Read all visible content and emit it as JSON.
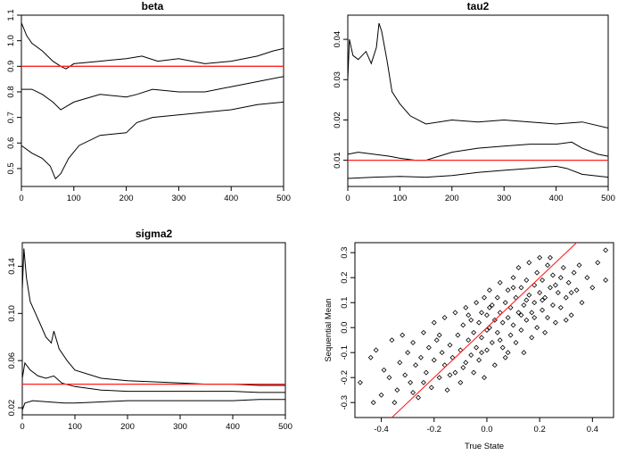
{
  "chart_data": [
    {
      "type": "line",
      "title": "beta",
      "xlabel": "",
      "ylabel": "",
      "xlim": [
        0,
        500
      ],
      "ylim": [
        0.43,
        1.1
      ],
      "xticks": [
        0,
        100,
        200,
        300,
        400,
        500
      ],
      "yticks": [
        0.5,
        0.6,
        0.7,
        0.8,
        0.9,
        1.0,
        1.1
      ],
      "xtick_labels": [
        "0",
        "100",
        "200",
        "300",
        "400",
        "500"
      ],
      "ytick_labels": [
        "0.5",
        "0.6",
        "0.7",
        "0.8",
        "0.9",
        "1.0",
        "1.1"
      ],
      "series": [
        {
          "name": "upper",
          "color": "#000000",
          "x": [
            0,
            10,
            20,
            40,
            60,
            75,
            85,
            100,
            150,
            200,
            230,
            260,
            300,
            350,
            400,
            450,
            480,
            500
          ],
          "y": [
            1.07,
            1.02,
            0.99,
            0.96,
            0.92,
            0.9,
            0.89,
            0.91,
            0.92,
            0.93,
            0.94,
            0.92,
            0.93,
            0.91,
            0.92,
            0.94,
            0.96,
            0.97
          ]
        },
        {
          "name": "middle",
          "color": "#000000",
          "x": [
            0,
            20,
            40,
            60,
            75,
            100,
            150,
            200,
            220,
            250,
            300,
            350,
            400,
            450,
            500
          ],
          "y": [
            0.81,
            0.81,
            0.79,
            0.76,
            0.73,
            0.76,
            0.79,
            0.78,
            0.79,
            0.81,
            0.8,
            0.8,
            0.82,
            0.84,
            0.86
          ]
        },
        {
          "name": "lower",
          "color": "#000000",
          "x": [
            0,
            20,
            40,
            55,
            65,
            75,
            90,
            110,
            150,
            200,
            220,
            250,
            300,
            350,
            400,
            450,
            500
          ],
          "y": [
            0.59,
            0.56,
            0.54,
            0.51,
            0.46,
            0.48,
            0.54,
            0.59,
            0.63,
            0.64,
            0.68,
            0.7,
            0.71,
            0.72,
            0.73,
            0.75,
            0.76
          ]
        }
      ],
      "hline": {
        "y": 0.9,
        "color": "#ff2020"
      }
    },
    {
      "type": "line",
      "title": "tau2",
      "xlabel": "",
      "ylabel": "",
      "xlim": [
        0,
        500
      ],
      "ylim": [
        0.0035,
        0.046
      ],
      "xticks": [
        0,
        100,
        200,
        300,
        400,
        500
      ],
      "yticks": [
        0.01,
        0.02,
        0.03,
        0.04
      ],
      "xtick_labels": [
        "0",
        "100",
        "200",
        "300",
        "400",
        "500"
      ],
      "ytick_labels": [
        "0.01",
        "0.02",
        "0.03",
        "0.04"
      ],
      "series": [
        {
          "name": "upper",
          "color": "#000000",
          "x": [
            0,
            3,
            10,
            20,
            35,
            45,
            55,
            60,
            65,
            75,
            85,
            100,
            120,
            150,
            200,
            250,
            300,
            350,
            400,
            450,
            500
          ],
          "y": [
            0.03,
            0.04,
            0.036,
            0.035,
            0.037,
            0.034,
            0.038,
            0.044,
            0.042,
            0.035,
            0.027,
            0.024,
            0.021,
            0.019,
            0.02,
            0.0195,
            0.02,
            0.0195,
            0.019,
            0.0195,
            0.018
          ]
        },
        {
          "name": "middle",
          "color": "#000000",
          "x": [
            0,
            20,
            50,
            80,
            100,
            130,
            150,
            200,
            250,
            300,
            350,
            400,
            430,
            450,
            480,
            500
          ],
          "y": [
            0.0115,
            0.012,
            0.0115,
            0.011,
            0.0105,
            0.01,
            0.01,
            0.012,
            0.013,
            0.0135,
            0.014,
            0.014,
            0.0145,
            0.013,
            0.0115,
            0.011
          ]
        },
        {
          "name": "lower",
          "color": "#000000",
          "x": [
            0,
            50,
            100,
            150,
            200,
            250,
            300,
            350,
            400,
            420,
            450,
            500
          ],
          "y": [
            0.0055,
            0.0058,
            0.006,
            0.0058,
            0.0062,
            0.007,
            0.0075,
            0.008,
            0.0085,
            0.008,
            0.0065,
            0.0058
          ]
        }
      ],
      "hline": {
        "y": 0.01,
        "color": "#ff2020"
      }
    },
    {
      "type": "line",
      "title": "sigma2",
      "xlabel": "",
      "ylabel": "",
      "xlim": [
        0,
        500
      ],
      "ylim": [
        0.014,
        0.16
      ],
      "xticks": [
        0,
        100,
        200,
        300,
        400,
        500
      ],
      "yticks": [
        0.02,
        0.06,
        0.1,
        0.14
      ],
      "xtick_labels": [
        "0",
        "100",
        "200",
        "300",
        "400",
        "500"
      ],
      "ytick_labels": [
        "0.02",
        "0.06",
        "0.10",
        "0.14"
      ],
      "series": [
        {
          "name": "upper",
          "color": "#000000",
          "x": [
            0,
            3,
            8,
            15,
            25,
            35,
            45,
            55,
            60,
            70,
            85,
            100,
            150,
            200,
            250,
            300,
            350,
            400,
            450,
            500
          ],
          "y": [
            0.12,
            0.155,
            0.13,
            0.11,
            0.1,
            0.09,
            0.08,
            0.075,
            0.085,
            0.07,
            0.06,
            0.052,
            0.045,
            0.043,
            0.042,
            0.041,
            0.04,
            0.04,
            0.039,
            0.039
          ]
        },
        {
          "name": "middle",
          "color": "#000000",
          "x": [
            0,
            5,
            15,
            30,
            45,
            60,
            75,
            100,
            150,
            200,
            250,
            300,
            350,
            400,
            450,
            500
          ],
          "y": [
            0.045,
            0.058,
            0.052,
            0.047,
            0.045,
            0.047,
            0.041,
            0.038,
            0.035,
            0.034,
            0.034,
            0.034,
            0.034,
            0.034,
            0.033,
            0.033
          ]
        },
        {
          "name": "lower",
          "color": "#000000",
          "x": [
            0,
            5,
            20,
            50,
            80,
            100,
            150,
            200,
            250,
            300,
            350,
            400,
            450,
            500
          ],
          "y": [
            0.018,
            0.024,
            0.026,
            0.025,
            0.024,
            0.024,
            0.025,
            0.026,
            0.026,
            0.026,
            0.026,
            0.026,
            0.027,
            0.027
          ]
        }
      ],
      "hline": {
        "y": 0.04,
        "color": "#ff2020"
      }
    },
    {
      "type": "scatter",
      "title": "",
      "xlabel": "True State",
      "ylabel": "Sequential Mean",
      "xlim": [
        -0.5,
        0.48
      ],
      "ylim": [
        -0.36,
        0.34
      ],
      "xticks": [
        -0.4,
        -0.2,
        0.0,
        0.2,
        0.4
      ],
      "yticks": [
        -0.3,
        -0.2,
        -0.1,
        0.0,
        0.1,
        0.2,
        0.3
      ],
      "xtick_labels": [
        "-0.4",
        "-0.2",
        "0.0",
        "0.2",
        "0.4"
      ],
      "ytick_labels": [
        "-0.3",
        "-0.2",
        "-0.1",
        "0.0",
        "0.1",
        "0.2",
        "0.3"
      ],
      "points": [
        [
          -0.48,
          -0.22
        ],
        [
          -0.44,
          -0.12
        ],
        [
          -0.43,
          -0.3
        ],
        [
          -0.42,
          -0.09
        ],
        [
          -0.4,
          -0.27
        ],
        [
          -0.39,
          -0.17
        ],
        [
          -0.37,
          -0.2
        ],
        [
          -0.36,
          -0.05
        ],
        [
          -0.34,
          -0.25
        ],
        [
          -0.33,
          -0.14
        ],
        [
          -0.32,
          -0.03
        ],
        [
          -0.31,
          -0.19
        ],
        [
          -0.3,
          -0.1
        ],
        [
          -0.29,
          -0.22
        ],
        [
          -0.28,
          -0.06
        ],
        [
          -0.27,
          -0.15
        ],
        [
          -0.26,
          -0.28
        ],
        [
          -0.25,
          -0.12
        ],
        [
          -0.24,
          -0.02
        ],
        [
          -0.23,
          -0.18
        ],
        [
          -0.22,
          -0.08
        ],
        [
          -0.21,
          -0.24
        ],
        [
          -0.2,
          -0.13
        ],
        [
          -0.2,
          0.02
        ],
        [
          -0.19,
          -0.05
        ],
        [
          -0.18,
          -0.2
        ],
        [
          -0.17,
          -0.1
        ],
        [
          -0.16,
          0.04
        ],
        [
          -0.16,
          -0.15
        ],
        [
          -0.15,
          -0.25
        ],
        [
          -0.14,
          -0.07
        ],
        [
          -0.13,
          -0.12
        ],
        [
          -0.12,
          0.06
        ],
        [
          -0.12,
          -0.18
        ],
        [
          -0.11,
          -0.03
        ],
        [
          -0.1,
          -0.09
        ],
        [
          -0.1,
          -0.22
        ],
        [
          -0.09,
          0.01
        ],
        [
          -0.08,
          -0.14
        ],
        [
          -0.08,
          0.08
        ],
        [
          -0.07,
          -0.05
        ],
        [
          -0.06,
          -0.11
        ],
        [
          -0.06,
          0.03
        ],
        [
          -0.05,
          -0.18
        ],
        [
          -0.05,
          -0.02
        ],
        [
          -0.04,
          0.1
        ],
        [
          -0.04,
          -0.08
        ],
        [
          -0.03,
          0.02
        ],
        [
          -0.03,
          -0.13
        ],
        [
          -0.02,
          0.06
        ],
        [
          -0.02,
          -0.04
        ],
        [
          -0.01,
          -0.2
        ],
        [
          -0.01,
          0.12
        ],
        [
          0.0,
          -0.01
        ],
        [
          0.0,
          0.05
        ],
        [
          0.0,
          -0.09
        ],
        [
          0.01,
          0.15
        ],
        [
          0.01,
          0.0
        ],
        [
          0.02,
          -0.06
        ],
        [
          0.02,
          0.09
        ],
        [
          0.03,
          0.03
        ],
        [
          0.03,
          -0.15
        ],
        [
          0.04,
          0.12
        ],
        [
          0.04,
          -0.02
        ],
        [
          0.05,
          0.06
        ],
        [
          0.05,
          0.18
        ],
        [
          0.06,
          -0.08
        ],
        [
          0.06,
          0.02
        ],
        [
          0.07,
          0.1
        ],
        [
          0.07,
          -0.12
        ],
        [
          0.08,
          0.04
        ],
        [
          0.08,
          0.15
        ],
        [
          0.09,
          -0.03
        ],
        [
          0.09,
          0.08
        ],
        [
          0.1,
          0.2
        ],
        [
          0.1,
          0.01
        ],
        [
          0.11,
          -0.06
        ],
        [
          0.11,
          0.12
        ],
        [
          0.12,
          0.06
        ],
        [
          0.12,
          0.24
        ],
        [
          0.13,
          -0.01
        ],
        [
          0.13,
          0.16
        ],
        [
          0.14,
          0.09
        ],
        [
          0.14,
          -0.1
        ],
        [
          0.15,
          0.03
        ],
        [
          0.15,
          0.19
        ],
        [
          0.16,
          0.13
        ],
        [
          0.16,
          0.26
        ],
        [
          0.17,
          0.06
        ],
        [
          0.17,
          -0.04
        ],
        [
          0.18,
          0.17
        ],
        [
          0.18,
          0.1
        ],
        [
          0.19,
          0.22
        ],
        [
          0.19,
          0.0
        ],
        [
          0.2,
          0.14
        ],
        [
          0.2,
          0.28
        ],
        [
          0.21,
          0.07
        ],
        [
          0.21,
          0.19
        ],
        [
          0.22,
          -0.02
        ],
        [
          0.22,
          0.12
        ],
        [
          0.23,
          0.25
        ],
        [
          0.23,
          0.04
        ],
        [
          0.24,
          0.16
        ],
        [
          0.25,
          0.09
        ],
        [
          0.25,
          0.21
        ],
        [
          0.26,
          0.02
        ],
        [
          0.27,
          0.14
        ],
        [
          0.28,
          0.2
        ],
        [
          0.28,
          0.08
        ],
        [
          0.29,
          0.24
        ],
        [
          0.3,
          0.12
        ],
        [
          0.31,
          0.18
        ],
        [
          0.32,
          0.05
        ],
        [
          0.33,
          0.22
        ],
        [
          0.34,
          0.15
        ],
        [
          0.35,
          0.25
        ],
        [
          0.36,
          0.1
        ],
        [
          0.38,
          0.2
        ],
        [
          0.4,
          0.16
        ],
        [
          0.42,
          0.26
        ],
        [
          0.45,
          0.31
        ],
        [
          0.45,
          0.19
        ],
        [
          -0.35,
          -0.3
        ],
        [
          -0.28,
          -0.26
        ],
        [
          -0.24,
          -0.22
        ],
        [
          -0.18,
          -0.03
        ],
        [
          -0.14,
          -0.19
        ],
        [
          -0.09,
          -0.16
        ],
        [
          -0.07,
          0.05
        ],
        [
          -0.02,
          -0.1
        ],
        [
          0.01,
          0.08
        ],
        [
          0.05,
          -0.05
        ],
        [
          0.08,
          -0.1
        ],
        [
          0.1,
          0.16
        ],
        [
          0.13,
          0.05
        ],
        [
          0.15,
          0.11
        ],
        [
          0.18,
          0.04
        ],
        [
          0.21,
          0.11
        ],
        [
          0.24,
          0.28
        ],
        [
          0.26,
          0.17
        ],
        [
          0.3,
          0.03
        ],
        [
          0.32,
          0.14
        ]
      ],
      "reference_line": {
        "slope": 1,
        "intercept": 0,
        "color": "#ff2020"
      }
    }
  ]
}
